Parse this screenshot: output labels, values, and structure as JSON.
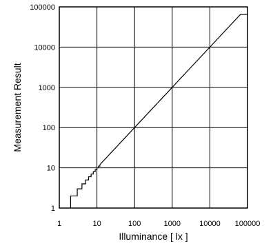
{
  "chart_data": {
    "type": "line",
    "title": "",
    "xlabel": "Illuminance [ lx ]",
    "ylabel": "Measurement Result",
    "xscale": "log",
    "yscale": "log",
    "xlim": [
      1,
      100000
    ],
    "ylim": [
      1,
      100000
    ],
    "grid": true,
    "legend": "none",
    "x_ticks": [
      1,
      10,
      100,
      1000,
      10000,
      100000
    ],
    "x_tick_labels": [
      "1",
      "10",
      "100",
      "1000",
      "10000",
      "100000"
    ],
    "y_ticks": [
      1,
      10,
      100,
      1000,
      10000,
      100000
    ],
    "y_tick_labels": [
      "1",
      "10",
      "100",
      "1000",
      "10000",
      "100000"
    ],
    "series": [
      {
        "color": "#000000",
        "points": [
          [
            2,
            1
          ],
          [
            2,
            2
          ],
          [
            3,
            2
          ],
          [
            3,
            3
          ],
          [
            4,
            3
          ],
          [
            4,
            4
          ],
          [
            5,
            4
          ],
          [
            5,
            5
          ],
          [
            6,
            5
          ],
          [
            6,
            6
          ],
          [
            7,
            6
          ],
          [
            7,
            7
          ],
          [
            8,
            7
          ],
          [
            8,
            8
          ],
          [
            9,
            8
          ],
          [
            9,
            9
          ],
          [
            10,
            9
          ],
          [
            10,
            10
          ],
          [
            11,
            10
          ],
          [
            11,
            11
          ],
          [
            12,
            11
          ],
          [
            12,
            12
          ],
          [
            100,
            100
          ],
          [
            1000,
            1000
          ],
          [
            10000,
            10000
          ],
          [
            65535,
            65535
          ],
          [
            100000,
            65535
          ]
        ]
      }
    ]
  }
}
